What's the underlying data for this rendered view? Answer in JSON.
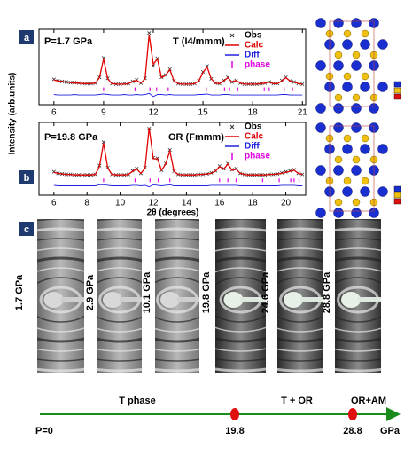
{
  "figure": {
    "ylabel": "Intensity (arb.units)",
    "xlabel": "2θ (degrees)"
  },
  "chart_data": [
    {
      "type": "line",
      "panel": "a",
      "annotations": [
        "P=1.7 GPa",
        "T (I4/mmm)"
      ],
      "xlim": [
        5.1,
        21.2
      ],
      "ylim": [
        -30,
        110
      ],
      "xticks": [
        6,
        9,
        12,
        15,
        18,
        21
      ],
      "x": [
        6,
        6.25,
        6.5,
        6.75,
        7,
        7.25,
        7.5,
        7.75,
        8,
        8.25,
        8.5,
        8.75,
        9,
        9.25,
        9.5,
        9.75,
        10,
        10.25,
        10.5,
        10.75,
        11,
        11.25,
        11.5,
        11.75,
        12,
        12.25,
        12.5,
        12.75,
        13,
        13.25,
        13.5,
        13.75,
        14,
        14.25,
        14.5,
        14.75,
        15,
        15.25,
        15.5,
        15.75,
        16,
        16.25,
        16.5,
        16.75,
        17,
        17.25,
        17.5,
        17.75,
        18,
        18.25,
        18.5,
        18.75,
        19,
        19.25,
        19.5,
        19.75,
        20,
        20.25,
        20.5,
        20.75,
        21
      ],
      "series": [
        {
          "name": "Obs",
          "color": "#333333",
          "values": [
            17,
            14,
            13,
            12,
            11,
            11,
            10,
            9,
            9,
            9,
            10,
            21,
            57,
            19,
            9,
            8,
            8,
            9,
            9,
            13,
            16,
            10,
            19,
            103,
            42,
            56,
            21,
            25,
            36,
            14,
            9,
            8,
            8,
            8,
            9,
            15,
            31,
            42,
            18,
            10,
            9,
            15,
            21,
            12,
            15,
            10,
            8,
            8,
            8,
            8,
            9,
            10,
            12,
            9,
            9,
            15,
            21,
            14,
            12,
            9,
            8
          ]
        },
        {
          "name": "Calc",
          "color": "#e00000",
          "values": [
            16,
            14,
            13,
            12,
            11,
            10,
            10,
            9,
            9,
            9,
            10,
            20,
            55,
            18,
            9,
            8,
            8,
            8,
            9,
            13,
            15,
            10,
            18,
            100,
            45,
            55,
            20,
            25,
            35,
            14,
            9,
            8,
            8,
            8,
            9,
            14,
            30,
            40,
            18,
            10,
            9,
            14,
            20,
            12,
            15,
            10,
            8,
            8,
            8,
            8,
            9,
            10,
            12,
            9,
            9,
            14,
            20,
            14,
            12,
            9,
            8
          ]
        },
        {
          "name": "Diff",
          "color": "#2020e0",
          "values": [
            -11,
            -12,
            -12,
            -12,
            -12,
            -11,
            -12,
            -12,
            -12,
            -12,
            -12,
            -11,
            -10,
            -11,
            -12,
            -12,
            -12,
            -11,
            -12,
            -12,
            -11,
            -12,
            -11,
            -9,
            -15,
            -11,
            -11,
            -12,
            -11,
            -12,
            -12,
            -12,
            -12,
            -12,
            -12,
            -11,
            -11,
            -10,
            -12,
            -12,
            -12,
            -11,
            -11,
            -12,
            -12,
            -12,
            -12,
            -12,
            -12,
            -12,
            -12,
            -12,
            -12,
            -12,
            -12,
            -11,
            -11,
            -12,
            -12,
            -12,
            -12
          ]
        }
      ],
      "phase": {
        "name": "phase",
        "color": "#e000e0",
        "x": [
          9.0,
          10.9,
          11.8,
          12.2,
          12.9,
          15.2,
          16.3,
          16.6,
          17.1,
          18.7,
          19.0,
          19.9,
          20.4
        ]
      }
    },
    {
      "type": "line",
      "panel": "b",
      "annotations": [
        "P=19.8 GPa",
        "OR (Fmmm)"
      ],
      "xlim": [
        5.1,
        21.2
      ],
      "ylim": [
        -30,
        110
      ],
      "xticks": [
        6,
        8,
        10,
        12,
        14,
        16,
        18,
        20
      ],
      "x": [
        6,
        6.25,
        6.5,
        6.75,
        7,
        7.25,
        7.5,
        7.75,
        8,
        8.25,
        8.5,
        8.75,
        9,
        9.25,
        9.5,
        9.75,
        10,
        10.25,
        10.5,
        10.75,
        11,
        11.25,
        11.5,
        11.75,
        12,
        12.25,
        12.5,
        12.75,
        13,
        13.25,
        13.5,
        13.75,
        14,
        14.25,
        14.5,
        14.75,
        15,
        15.25,
        15.5,
        15.75,
        16,
        16.25,
        16.5,
        16.75,
        17,
        17.25,
        17.5,
        17.75,
        18,
        18.25,
        18.5,
        18.75,
        19,
        19.25,
        19.5,
        19.75,
        20,
        20.25,
        20.5,
        20.75,
        21
      ],
      "series": [
        {
          "name": "Obs",
          "color": "#333333",
          "values": [
            15,
            12,
            11,
            10,
            10,
            9,
            9,
            9,
            9,
            9,
            10,
            27,
            72,
            23,
            10,
            9,
            9,
            9,
            10,
            17,
            21,
            12,
            23,
            98,
            42,
            41,
            18,
            31,
            57,
            16,
            10,
            9,
            9,
            9,
            9,
            10,
            10,
            11,
            13,
            17,
            26,
            21,
            31,
            19,
            21,
            12,
            10,
            9,
            9,
            9,
            9,
            9,
            10,
            10,
            11,
            13,
            15,
            17,
            19,
            12,
            10
          ]
        },
        {
          "name": "Calc",
          "color": "#e00000",
          "values": [
            14,
            12,
            11,
            10,
            10,
            9,
            9,
            9,
            9,
            9,
            10,
            25,
            70,
            22,
            10,
            9,
            9,
            9,
            10,
            16,
            20,
            12,
            22,
            100,
            40,
            40,
            18,
            30,
            55,
            16,
            10,
            9,
            9,
            9,
            9,
            10,
            10,
            11,
            12,
            16,
            25,
            20,
            30,
            18,
            20,
            12,
            10,
            9,
            9,
            9,
            9,
            9,
            10,
            10,
            11,
            12,
            14,
            16,
            18,
            12,
            10
          ]
        },
        {
          "name": "Diff",
          "color": "#2020e0",
          "values": [
            -11,
            -12,
            -12,
            -12,
            -12,
            -12,
            -12,
            -12,
            -12,
            -12,
            -12,
            -10,
            -10,
            -11,
            -12,
            -12,
            -12,
            -12,
            -12,
            -11,
            -11,
            -12,
            -11,
            -14,
            -10,
            -11,
            -12,
            -11,
            -10,
            -12,
            -12,
            -12,
            -12,
            -12,
            -12,
            -12,
            -12,
            -12,
            -11,
            -11,
            -11,
            -11,
            -11,
            -11,
            -11,
            -12,
            -12,
            -12,
            -12,
            -12,
            -12,
            -12,
            -12,
            -12,
            -12,
            -11,
            -11,
            -11,
            -11,
            -12,
            -12
          ]
        }
      ],
      "phase": {
        "name": "phase",
        "color": "#e000e0",
        "x": [
          9.0,
          10.9,
          11.8,
          12.3,
          13.0,
          16.0,
          16.5,
          17.0,
          18.6,
          19.6,
          20.3,
          20.5,
          20.8
        ]
      }
    }
  ],
  "images": {
    "panel": "c",
    "labels": [
      "1.7 GPa",
      "2.9 GPa",
      "10.1 GPa",
      "19.8 GPa",
      "24.6 GPa",
      "28.8 GPa"
    ]
  },
  "timeline": {
    "start": "P=0",
    "phases": [
      "T phase",
      "T + OR",
      "OR+AM"
    ],
    "points": [
      "19.8",
      "28.8"
    ],
    "unit": "GPa"
  }
}
